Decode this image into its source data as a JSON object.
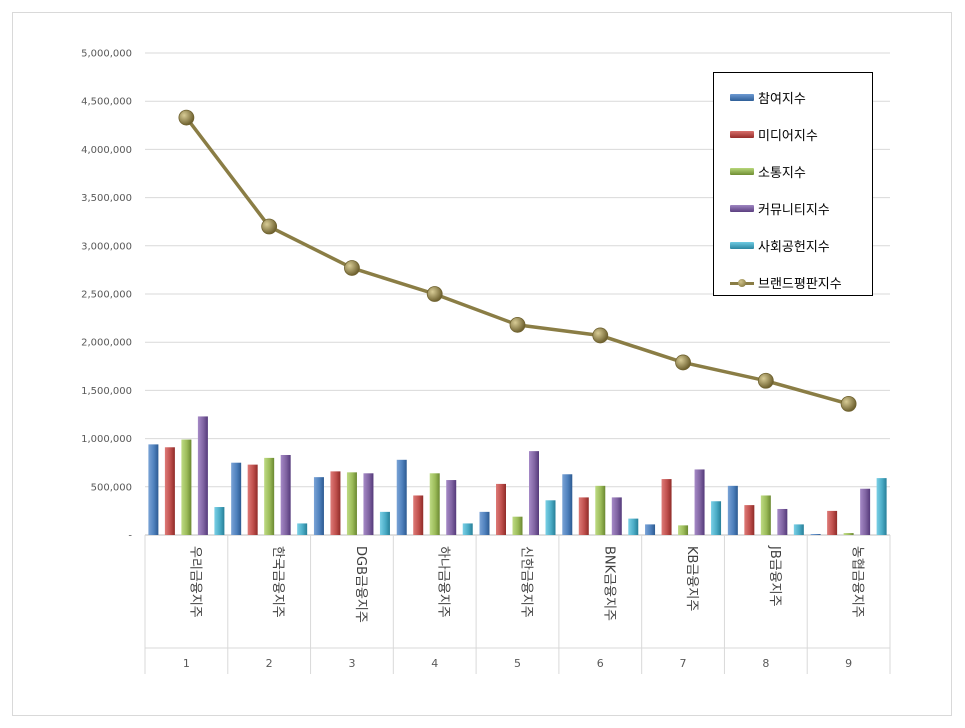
{
  "chart_data": {
    "type": "bar",
    "ylim": [
      0,
      5000000
    ],
    "yticks": [
      0,
      500000,
      1000000,
      1500000,
      2000000,
      2500000,
      3000000,
      3500000,
      4000000,
      4500000,
      5000000
    ],
    "ytick_labels": [
      "-",
      "500,000",
      "1,000,000",
      "1,500,000",
      "2,000,000",
      "2,500,000",
      "3,000,000",
      "3,500,000",
      "4,000,000",
      "4,500,000",
      "5,000,000"
    ],
    "ranks": [
      "1",
      "2",
      "3",
      "4",
      "5",
      "6",
      "7",
      "8",
      "9"
    ],
    "categories": [
      "우리금융지주",
      "한국금융지주",
      "DGB금융지주",
      "하나금융지주",
      "신한금융지주",
      "BNK금융지주",
      "KB금융지주",
      "JB금융지주",
      "농협금융지주"
    ],
    "grid": true,
    "legend_position": "top-right",
    "series": [
      {
        "name": "참여지수",
        "type": "bar",
        "color": "#4f81bd",
        "values": [
          940000,
          750000,
          600000,
          780000,
          240000,
          630000,
          110000,
          510000,
          10000
        ]
      },
      {
        "name": "미디어지수",
        "type": "bar",
        "color": "#c0504d",
        "values": [
          910000,
          730000,
          660000,
          410000,
          530000,
          390000,
          580000,
          310000,
          250000
        ]
      },
      {
        "name": "소통지수",
        "type": "bar",
        "color": "#9bbb59",
        "values": [
          990000,
          800000,
          650000,
          640000,
          190000,
          510000,
          100000,
          410000,
          20000
        ]
      },
      {
        "name": "커뮤니티지수",
        "type": "bar",
        "color": "#8064a2",
        "values": [
          1230000,
          830000,
          640000,
          570000,
          870000,
          390000,
          680000,
          270000,
          480000
        ]
      },
      {
        "name": "사회공헌지수",
        "type": "bar",
        "color": "#4bacc6",
        "values": [
          290000,
          120000,
          240000,
          120000,
          360000,
          170000,
          350000,
          110000,
          590000
        ]
      },
      {
        "name": "브랜드평판지수",
        "type": "line",
        "color": "#8a7d45",
        "values": [
          4330000,
          3200000,
          2770000,
          2500000,
          2180000,
          2070000,
          1790000,
          1600000,
          1360000
        ]
      }
    ]
  }
}
